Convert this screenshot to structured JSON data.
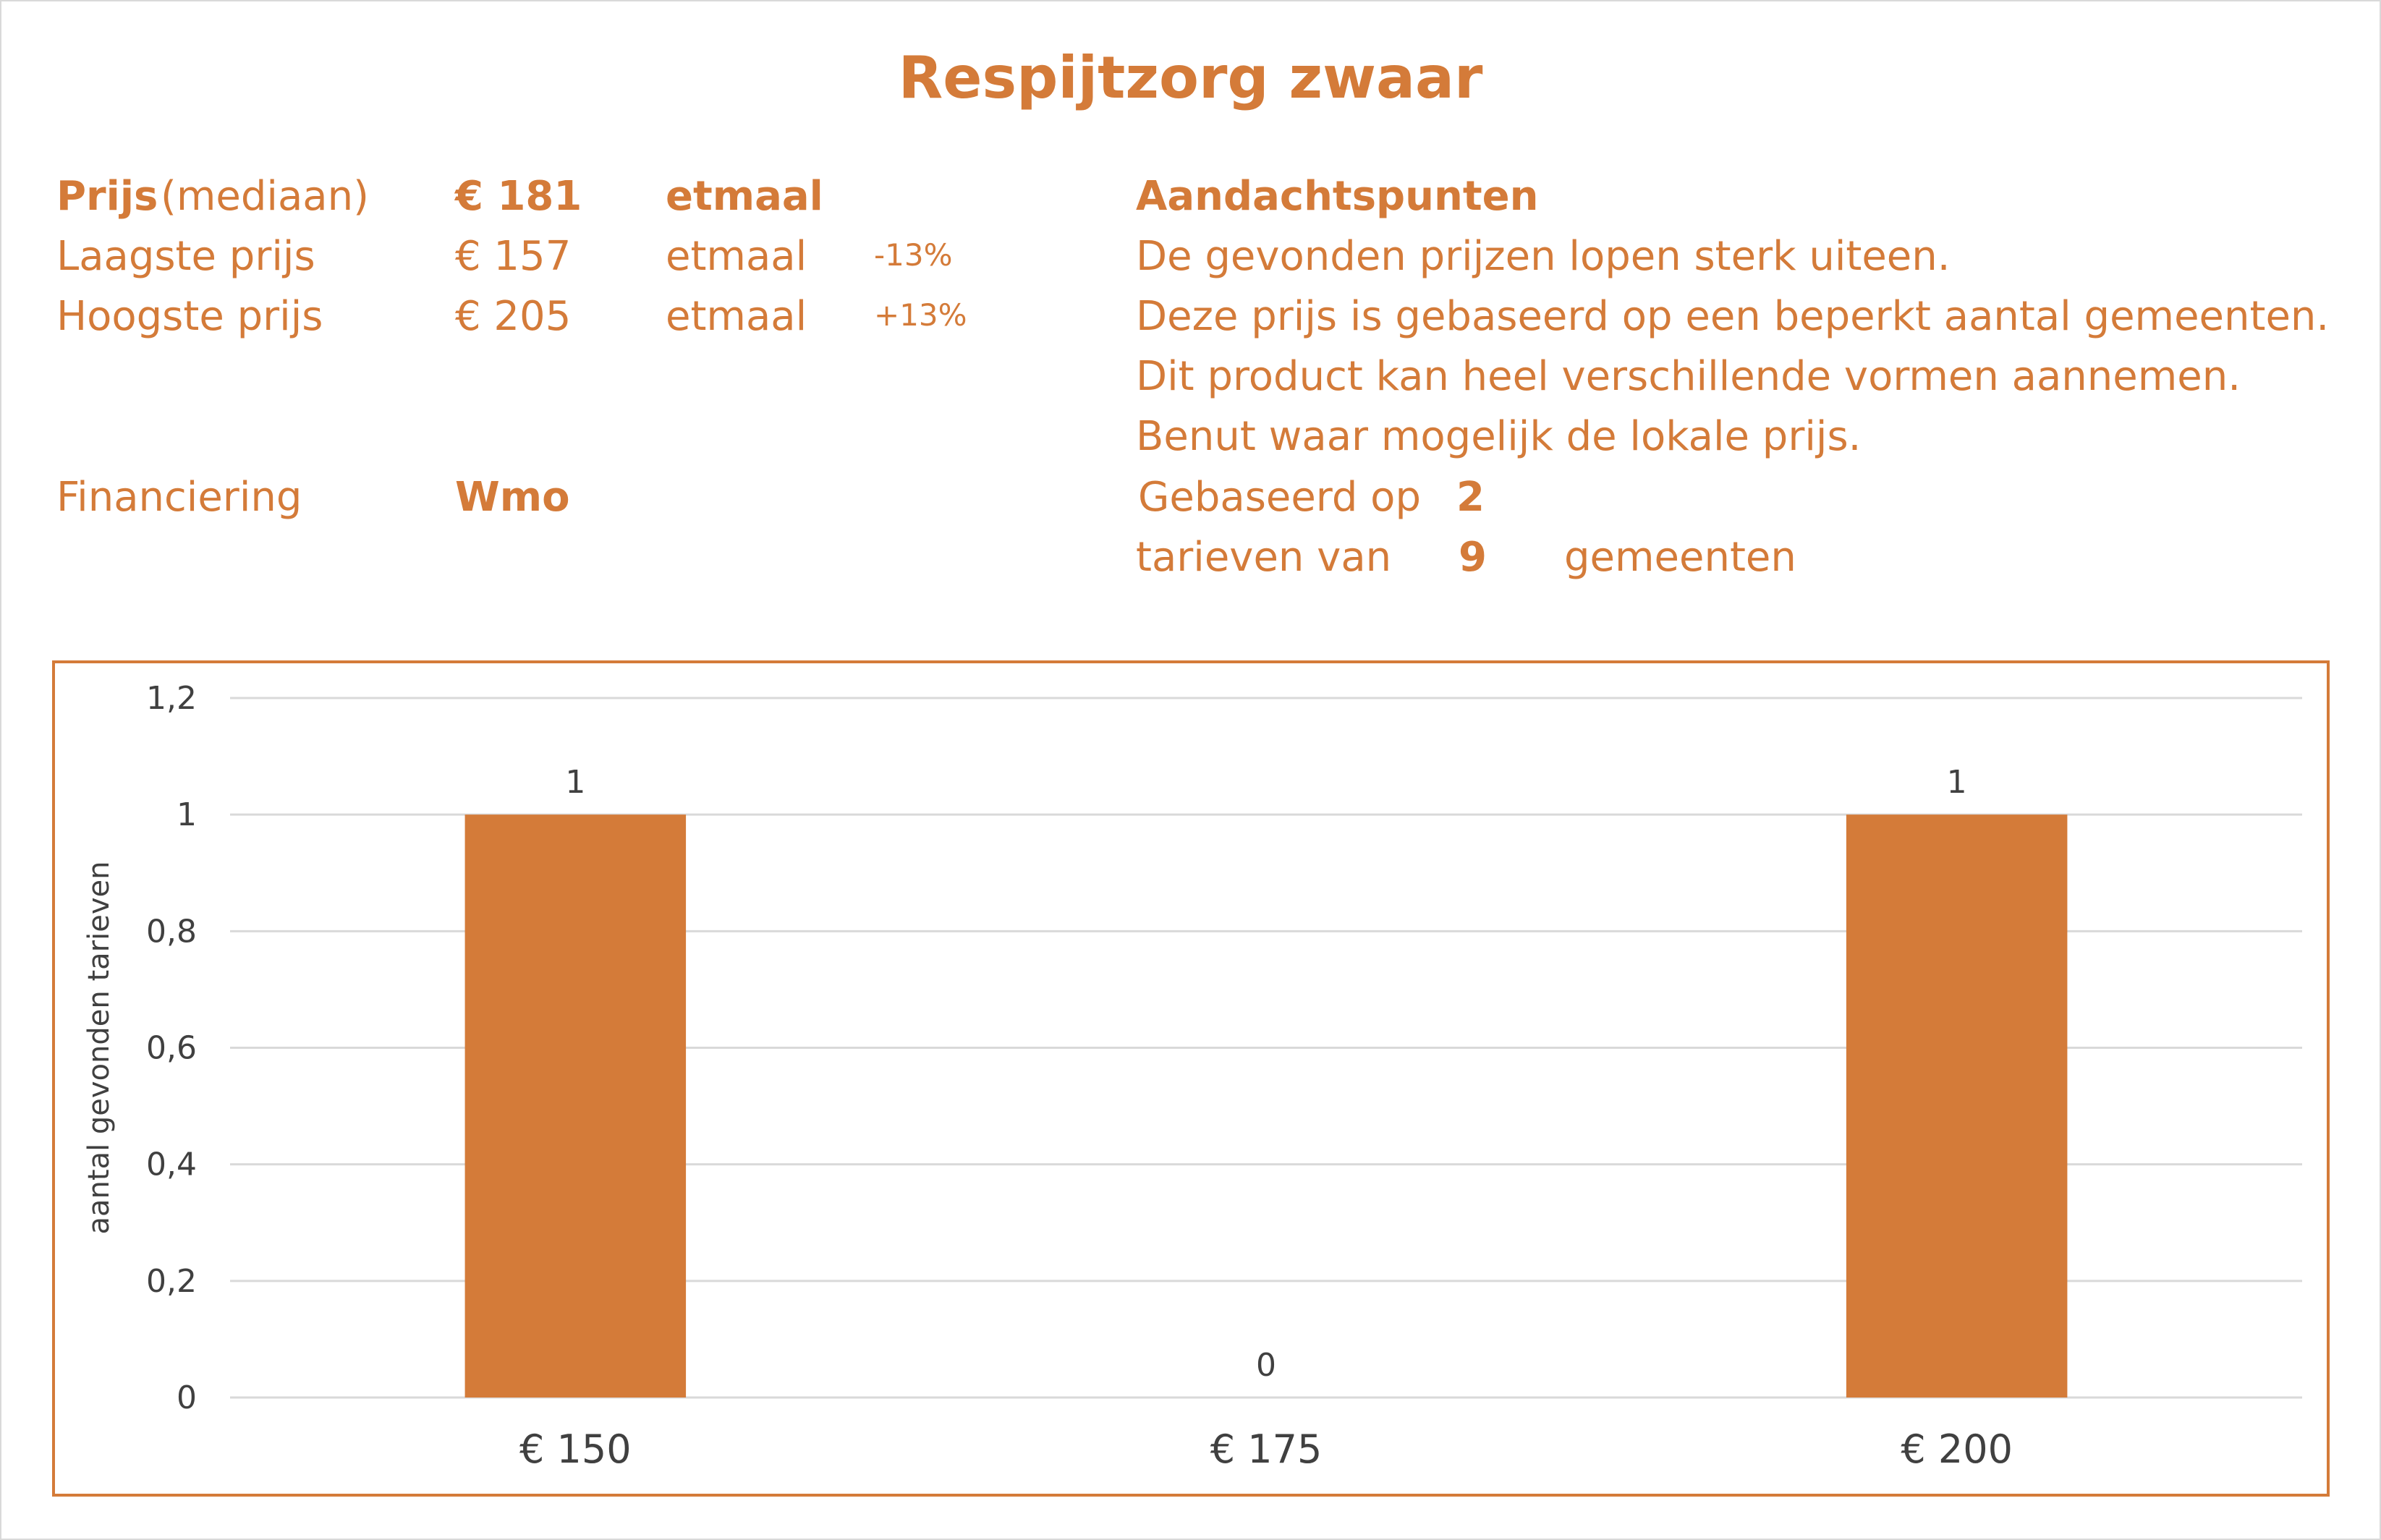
{
  "header": {
    "title": "Respijtzorg zwaar"
  },
  "prices": {
    "median": {
      "label_bold": "Prijs",
      "label_rest": "(mediaan)",
      "value": "€ 181",
      "unit": "etmaal"
    },
    "lowest": {
      "label": "Laagste prijs",
      "value": "€ 157",
      "unit": "etmaal",
      "delta": "-13%"
    },
    "highest": {
      "label": "Hoogste prijs",
      "value": "€ 205",
      "unit": "etmaal",
      "delta": "+13%"
    },
    "financing": {
      "label": "Financiering",
      "value": "Wmo"
    }
  },
  "notes": {
    "heading": "Aandachtspunten",
    "lines": [
      "De gevonden prijzen lopen sterk uiteen.",
      "Deze prijs is gebaseerd op een beperkt aantal gemeenten.",
      "Dit product kan heel verschillende vormen aannemen.",
      "Benut waar mogelijk de lokale prijs."
    ],
    "based_on_label": "Gebaseerd op",
    "based_on_value": "2",
    "rates_label": "tarieven van",
    "rates_value": "9",
    "rates_unit": "gemeenten"
  },
  "colors": {
    "accent": "#d47b39",
    "bar": "#d47b39",
    "grid": "#d9d9d9",
    "axis_text": "#404040"
  },
  "chart_data": {
    "type": "bar",
    "categories": [
      "€ 150",
      "€ 175",
      "€ 200"
    ],
    "values": [
      1,
      0,
      1
    ],
    "data_labels": [
      "1",
      "0",
      "1"
    ],
    "title": "",
    "xlabel": "",
    "ylabel": "aantal gevonden tarieven",
    "ylim": [
      0,
      1.2
    ],
    "yticks": [
      0,
      0.2,
      0.4,
      0.6,
      0.8,
      1,
      1.2
    ],
    "ytick_labels": [
      "0",
      "0,2",
      "0,4",
      "0,6",
      "0,8",
      "1",
      "1,2"
    ],
    "grid": true,
    "legend": "none"
  }
}
